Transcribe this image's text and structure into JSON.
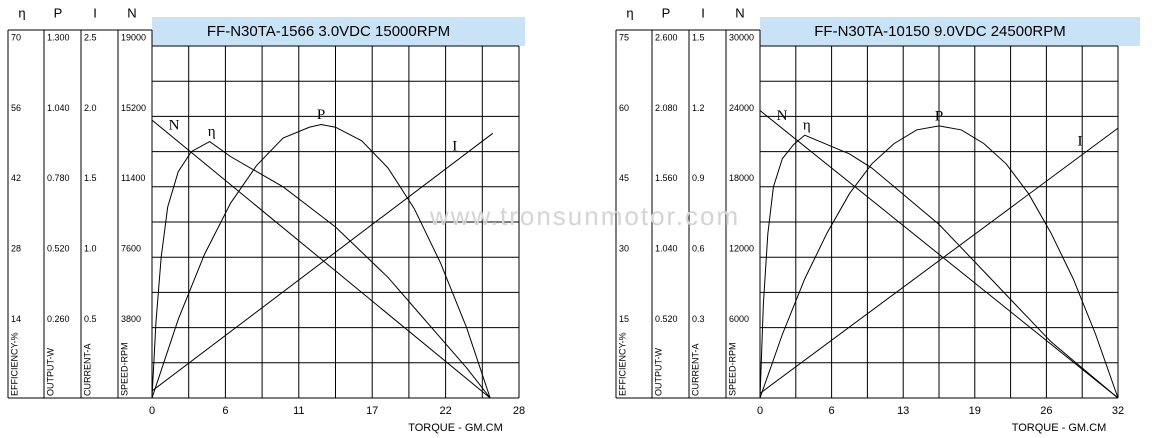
{
  "watermark": "www.tronsunmotor.com",
  "chart_data": [
    {
      "type": "line",
      "title": "FF-N30TA-1566     3.0VDC  15000RPM",
      "xlabel": "TORQUE - GM.CM",
      "xlim": [
        0,
        28
      ],
      "xticks": [
        0,
        {
          "value": 5.6,
          "label": "6"
        },
        {
          "value": 11.2,
          "label": "11"
        },
        {
          "value": 16.8,
          "label": "17"
        },
        {
          "value": 22.4,
          "label": "22"
        },
        28
      ],
      "axes": [
        {
          "symbol": "η",
          "label": "EFFICIENCY-%",
          "ylim": [
            0,
            70
          ],
          "yticks": [
            14,
            28,
            42,
            56,
            70
          ],
          "series": {
            "name": "η",
            "color": "#000000",
            "x": [
              0,
              0.3,
              0.7,
              1.2,
              2,
              3,
              4.4,
              6,
              8,
              10,
              12,
              14,
              16,
              18,
              20,
              22,
              24,
              25.8
            ],
            "values": [
              0,
              15,
              28,
              38,
              45,
              49,
              51,
              48,
              45,
              42,
              38,
              34,
              29,
              24,
              18,
              12,
              6,
              0
            ]
          }
        },
        {
          "symbol": "P",
          "label": "OUTPUT-W",
          "ylim": [
            0,
            1.3
          ],
          "yticks": [
            {
              "value": 0.26,
              "label": "0.260"
            },
            {
              "value": 0.52,
              "label": "0.520"
            },
            {
              "value": 0.78,
              "label": "0.780"
            },
            {
              "value": 1.04,
              "label": "1.040"
            },
            {
              "value": 1.3,
              "label": "1.300"
            }
          ],
          "series": {
            "name": "P",
            "color": "#000000",
            "x": [
              0,
              2,
              4,
              6,
              8,
              10,
              12,
              12.9,
              14,
              16,
              18,
              20,
              22,
              24,
              25.8
            ],
            "values": [
              0,
              0.29,
              0.53,
              0.72,
              0.86,
              0.96,
              1.0,
              1.01,
              1.0,
              0.95,
              0.85,
              0.7,
              0.5,
              0.26,
              0
            ]
          }
        },
        {
          "symbol": "I",
          "label": "CURRENT-A",
          "ylim": [
            0,
            2.5
          ],
          "yticks": [
            0.5,
            {
              "value": 1,
              "label": "1.0"
            },
            1.5,
            {
              "value": 2,
              "label": "2.0"
            },
            2.5
          ],
          "series": {
            "name": "I",
            "color": "#000000",
            "x": [
              0,
              26
            ],
            "values": [
              0.05,
              1.88
            ]
          }
        },
        {
          "symbol": "N",
          "label": "SPEED-RPM",
          "ylim": [
            0,
            19000
          ],
          "yticks": [
            3800,
            7600,
            11400,
            15200,
            19000
          ],
          "series": {
            "name": "N",
            "color": "#000000",
            "x": [
              0,
              25.8
            ],
            "values": [
              15000,
              0
            ]
          }
        }
      ]
    },
    {
      "type": "line",
      "title": "FF-N30TA-10150      9.0VDC  24500RPM",
      "xlabel": "TORQUE - GM.CM",
      "xlim": [
        0,
        32
      ],
      "xticks": [
        0,
        {
          "value": 6.4,
          "label": "6"
        },
        {
          "value": 12.8,
          "label": "13"
        },
        {
          "value": 19.2,
          "label": "19"
        },
        {
          "value": 25.6,
          "label": "26"
        },
        32
      ],
      "axes": [
        {
          "symbol": "η",
          "label": "EFFICIENCY-%",
          "ylim": [
            0,
            75
          ],
          "yticks": [
            15,
            30,
            45,
            60,
            75
          ],
          "series": {
            "name": "η",
            "color": "#000000",
            "x": [
              0,
              0.3,
              0.7,
              1.2,
              2,
              3,
              4,
              6,
              8,
              10,
              12,
              14,
              16,
              18,
              20,
              22,
              24,
              26,
              28,
              30,
              32
            ],
            "values": [
              0,
              20,
              35,
              45,
              51,
              54,
              56,
              54,
              52,
              49,
              45,
              41,
              37,
              32,
              27,
              22,
              17,
              12,
              8,
              4,
              0
            ]
          }
        },
        {
          "symbol": "P",
          "label": "OUTPUT-W",
          "ylim": [
            0,
            2.6
          ],
          "yticks": [
            {
              "value": 0.52,
              "label": "0.520"
            },
            {
              "value": 1.04,
              "label": "1.040"
            },
            {
              "value": 1.56,
              "label": "1.560"
            },
            {
              "value": 2.08,
              "label": "2.080"
            },
            {
              "value": 2.6,
              "label": "2.600"
            }
          ],
          "series": {
            "name": "P",
            "color": "#000000",
            "x": [
              0,
              2,
              4,
              6,
              8,
              10,
              12,
              14,
              16,
              18,
              20,
              22,
              24,
              26,
              28,
              30,
              32
            ],
            "values": [
              0,
              0.47,
              0.88,
              1.22,
              1.51,
              1.73,
              1.88,
              1.98,
              2.01,
              1.98,
              1.88,
              1.73,
              1.51,
              1.22,
              0.88,
              0.47,
              0
            ]
          }
        },
        {
          "symbol": "I",
          "label": "CURRENT-A",
          "ylim": [
            0,
            1.5
          ],
          "yticks": [
            0.3,
            0.6,
            0.9,
            1.2,
            1.5
          ],
          "series": {
            "name": "I",
            "color": "#000000",
            "x": [
              0,
              32
            ],
            "values": [
              0.02,
              1.15
            ]
          }
        },
        {
          "symbol": "N",
          "label": "SPEED-RPM",
          "ylim": [
            0,
            30000
          ],
          "yticks": [
            6000,
            12000,
            18000,
            24000,
            30000
          ],
          "series": {
            "name": "N",
            "color": "#000000",
            "x": [
              0,
              32
            ],
            "values": [
              24500,
              0
            ]
          }
        }
      ]
    }
  ]
}
